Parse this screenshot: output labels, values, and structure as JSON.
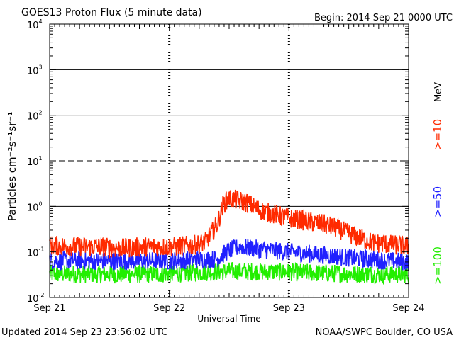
{
  "chart_data": {
    "type": "line",
    "title": "GOES13 Proton Flux (5 minute data)",
    "begin_label": "Begin: 2014 Sep 21 0000 UTC",
    "xlabel": "Universal Time",
    "ylabel": "Particles cm⁻²s⁻¹sr⁻¹",
    "unit_label": "MeV",
    "yscale": "log",
    "ylim": [
      0.01,
      10000
    ],
    "y_ticks": [
      {
        "value": 0.01,
        "base": "10",
        "exp": "-2"
      },
      {
        "value": 0.1,
        "base": "10",
        "exp": "-1"
      },
      {
        "value": 1,
        "base": "10",
        "exp": "0"
      },
      {
        "value": 10,
        "base": "10",
        "exp": "1"
      },
      {
        "value": 100,
        "base": "10",
        "exp": "2"
      },
      {
        "value": 1000,
        "base": "10",
        "exp": "3"
      },
      {
        "value": 10000,
        "base": "10",
        "exp": "4"
      }
    ],
    "x_ticks": [
      "Sep 21",
      "Sep 22",
      "Sep 23",
      "Sep 24"
    ],
    "xlim_days": [
      0,
      3
    ],
    "threshold_lines": [
      {
        "value": 1,
        "style": "solid"
      },
      {
        "value": 10,
        "style": "dashed"
      },
      {
        "value": 100,
        "style": "solid"
      },
      {
        "value": 1000,
        "style": "solid"
      }
    ],
    "series": [
      {
        "name": ">=10",
        "color": "#ff2a00",
        "x_days": [
          0,
          0.2,
          0.4,
          0.6,
          0.8,
          1.0,
          1.2,
          1.3,
          1.4,
          1.45,
          1.5,
          1.55,
          1.6,
          1.65,
          1.7,
          1.75,
          1.8,
          1.9,
          2.0,
          2.1,
          2.2,
          2.3,
          2.4,
          2.5,
          2.6,
          2.7,
          2.8,
          2.9,
          3.0
        ],
        "values": [
          0.14,
          0.13,
          0.13,
          0.12,
          0.13,
          0.13,
          0.14,
          0.16,
          0.4,
          1.1,
          1.5,
          1.4,
          1.3,
          1.2,
          1.0,
          0.85,
          0.75,
          0.65,
          0.55,
          0.5,
          0.45,
          0.4,
          0.33,
          0.25,
          0.2,
          0.16,
          0.15,
          0.14,
          0.13
        ]
      },
      {
        "name": ">=50",
        "color": "#2020ff",
        "x_days": [
          0,
          0.5,
          1.0,
          1.4,
          1.5,
          1.6,
          1.7,
          1.8,
          2.0,
          2.2,
          2.4,
          2.6,
          2.8,
          3.0
        ],
        "values": [
          0.065,
          0.063,
          0.064,
          0.07,
          0.11,
          0.13,
          0.12,
          0.11,
          0.1,
          0.09,
          0.08,
          0.07,
          0.065,
          0.06
        ]
      },
      {
        "name": ">=100",
        "color": "#22ee00",
        "x_days": [
          0,
          0.5,
          1.0,
          1.5,
          2.0,
          2.5,
          3.0
        ],
        "values": [
          0.033,
          0.032,
          0.033,
          0.038,
          0.036,
          0.033,
          0.032
        ]
      }
    ]
  },
  "footer": {
    "updated": "Updated 2014 Sep 23 23:56:02 UTC",
    "credit": "NOAA/SWPC Boulder, CO USA"
  }
}
